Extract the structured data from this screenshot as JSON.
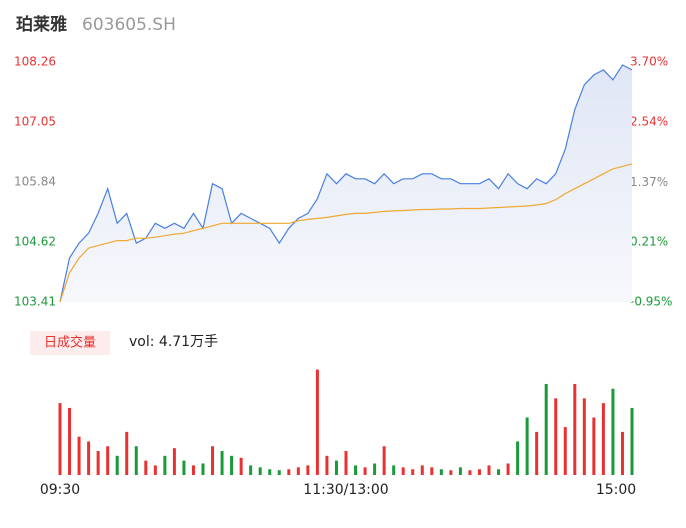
{
  "header": {
    "name": "珀莱雅",
    "code": "603605.SH"
  },
  "chart_data": [
    {
      "type": "line",
      "x": [
        0,
        4,
        8,
        12,
        16,
        20,
        24,
        28,
        32,
        36,
        40,
        44,
        48,
        52,
        56,
        60,
        64,
        68,
        72,
        76,
        80,
        84,
        88,
        92,
        96,
        100,
        104,
        108,
        112,
        116,
        120,
        124,
        128,
        132,
        136,
        140,
        144,
        148,
        152,
        156,
        160,
        164,
        168,
        172,
        176,
        180,
        184,
        188,
        192,
        196,
        200,
        204,
        208,
        212,
        216,
        220,
        224,
        228,
        232,
        236,
        240
      ],
      "series": [
        {
          "name": "price",
          "color": "#4a7fe0",
          "values": [
            103.41,
            104.3,
            104.6,
            104.8,
            105.2,
            105.7,
            105.0,
            105.2,
            104.6,
            104.7,
            105.0,
            104.9,
            105.0,
            104.9,
            105.2,
            104.9,
            105.8,
            105.7,
            105.0,
            105.2,
            105.1,
            105.0,
            104.9,
            104.6,
            104.9,
            105.1,
            105.2,
            105.5,
            106.0,
            105.8,
            106.0,
            105.9,
            105.9,
            105.8,
            106.0,
            105.8,
            105.9,
            105.9,
            106.0,
            106.0,
            105.9,
            105.9,
            105.8,
            105.8,
            105.8,
            105.9,
            105.7,
            106.0,
            105.8,
            105.7,
            105.9,
            105.8,
            106.0,
            106.5,
            107.3,
            107.8,
            108.0,
            108.1,
            107.9,
            108.2,
            108.1
          ]
        },
        {
          "name": "average",
          "color": "#f0a830",
          "values": [
            103.41,
            104.0,
            104.3,
            104.5,
            104.55,
            104.6,
            104.65,
            104.65,
            104.7,
            104.7,
            104.72,
            104.75,
            104.78,
            104.8,
            104.85,
            104.9,
            104.95,
            105.0,
            105.0,
            105.0,
            105.0,
            105.0,
            105.0,
            105.0,
            105.0,
            105.05,
            105.08,
            105.1,
            105.12,
            105.15,
            105.18,
            105.2,
            105.2,
            105.22,
            105.24,
            105.25,
            105.26,
            105.27,
            105.28,
            105.28,
            105.29,
            105.29,
            105.3,
            105.3,
            105.3,
            105.31,
            105.32,
            105.33,
            105.34,
            105.35,
            105.37,
            105.4,
            105.48,
            105.6,
            105.7,
            105.8,
            105.9,
            106.0,
            106.1,
            106.15,
            106.2
          ]
        }
      ],
      "xlim": [
        0,
        240
      ],
      "ylim": [
        103.41,
        108.26
      ],
      "yticks": [
        108.26,
        107.05,
        105.84,
        104.62,
        103.41
      ],
      "ytick_colors": [
        "#e83232",
        "#e83232",
        "#888888",
        "#1a9a3a",
        "#1a9a3a"
      ],
      "y2lim": [
        -0.95,
        3.7
      ],
      "y2ticks": [
        {
          "value": 3.7,
          "label": "3.70%"
        },
        {
          "value": 2.54,
          "label": "2.54%"
        },
        {
          "value": 1.37,
          "label": "1.37%"
        },
        {
          "value": 0.21,
          "label": "0.21%"
        },
        {
          "value": -0.95,
          "label": "-0.95%"
        }
      ]
    },
    {
      "type": "bar",
      "title": "日成交量",
      "annotation": "vol: 4.71万手",
      "x": [
        0,
        4,
        8,
        12,
        16,
        20,
        24,
        28,
        32,
        36,
        40,
        44,
        48,
        52,
        56,
        60,
        64,
        68,
        72,
        76,
        80,
        84,
        88,
        92,
        96,
        100,
        104,
        108,
        112,
        116,
        120,
        124,
        128,
        132,
        136,
        140,
        144,
        148,
        152,
        156,
        160,
        164,
        168,
        172,
        176,
        180,
        184,
        188,
        192,
        196,
        200,
        204,
        208,
        212,
        216,
        220,
        224,
        228,
        232,
        236,
        240
      ],
      "values": [
        75,
        70,
        40,
        35,
        25,
        30,
        20,
        45,
        30,
        15,
        10,
        20,
        28,
        15,
        10,
        12,
        30,
        25,
        20,
        18,
        10,
        8,
        6,
        5,
        6,
        8,
        10,
        110,
        20,
        15,
        25,
        10,
        8,
        12,
        30,
        10,
        8,
        6,
        10,
        8,
        6,
        5,
        8,
        5,
        6,
        10,
        6,
        12,
        35,
        60,
        45,
        95,
        80,
        50,
        95,
        80,
        60,
        75,
        90,
        45,
        70
      ],
      "up_color": "#e83232",
      "down_color": "#1a9a3a",
      "xlim": [
        0,
        240
      ],
      "ylim": [
        0,
        120
      ],
      "xticks": [
        {
          "value": 0,
          "label": "09:30"
        },
        {
          "value": 120,
          "label": "11:30/13:00"
        },
        {
          "value": 240,
          "label": "15:00"
        }
      ]
    }
  ]
}
